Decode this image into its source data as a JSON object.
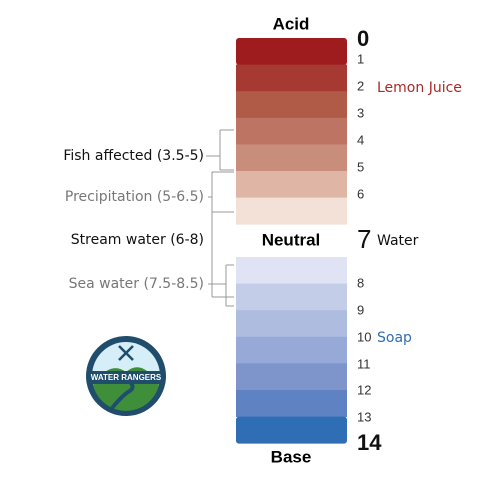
{
  "headings": {
    "top": "Acid",
    "middle": "Neutral",
    "bottom": "Base"
  },
  "levels": [
    0,
    1,
    2,
    3,
    4,
    5,
    6,
    7,
    8,
    9,
    10,
    11,
    12,
    13,
    14
  ],
  "examples": [
    {
      "text": "Lemon Juice",
      "level": 2
    },
    {
      "text": "Water",
      "level": 7
    },
    {
      "text": "Soap",
      "level": 10
    }
  ],
  "ranges": [
    {
      "text": "Fish affected (3.5-5)"
    },
    {
      "text": "Precipitation (5-6.5)"
    },
    {
      "text": "Stream water (6-8)"
    },
    {
      "text": "Sea water (7.5-8.5)"
    }
  ],
  "logo": {
    "text": "WATER RANGERS"
  }
}
